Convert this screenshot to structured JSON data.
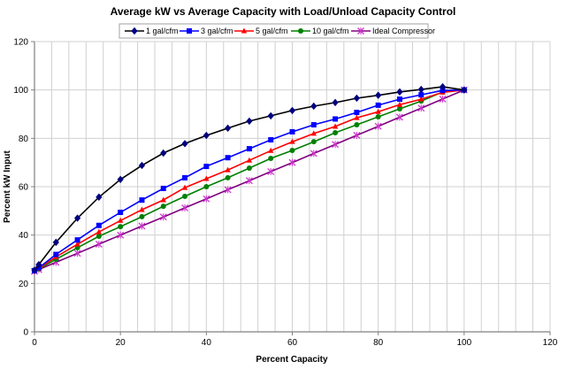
{
  "chart_data": {
    "type": "line",
    "title": "Average kW vs Average Capacity with Load/Unload Capacity Control",
    "xlabel": "Percent Capacity",
    "ylabel": "Percent kW Input",
    "xlim": [
      0,
      120
    ],
    "ylim": [
      0,
      120
    ],
    "xticks": [
      0,
      20,
      40,
      60,
      80,
      100,
      120
    ],
    "yticks": [
      0,
      20,
      40,
      60,
      80,
      100,
      120
    ],
    "x_minor_grid_step": 4,
    "grid": true,
    "legend_position": "top-center",
    "x": [
      0,
      1,
      5,
      10,
      15,
      20,
      25,
      30,
      35,
      40,
      45,
      50,
      55,
      60,
      65,
      70,
      75,
      80,
      85,
      90,
      95,
      100
    ],
    "series": [
      {
        "name": "1 gal/cfm",
        "color": "#000000",
        "marker_color": "#000080",
        "marker": "diamond",
        "values": [
          25.5,
          27.8,
          37,
          47,
          55.7,
          63,
          68.8,
          73.9,
          77.8,
          81.2,
          84.2,
          87.1,
          89.3,
          91.5,
          93.3,
          94.8,
          96.6,
          97.8,
          99.2,
          100.2,
          101.3,
          100
        ]
      },
      {
        "name": "3 gal/cfm",
        "color": "#0000FF",
        "marker_color": "#0000FF",
        "marker": "square",
        "values": [
          25.3,
          26.5,
          32,
          38,
          44,
          49.4,
          54.5,
          59.3,
          63.7,
          68.4,
          72,
          75.7,
          79.4,
          82.7,
          85.6,
          88,
          90.7,
          93.7,
          96.2,
          98,
          99.8,
          100
        ]
      },
      {
        "name": "5 gal/cfm",
        "color": "#FF0000",
        "marker_color": "#FF0000",
        "marker": "triangle",
        "values": [
          25.2,
          26.2,
          31,
          36.2,
          41.3,
          46,
          50.5,
          54.5,
          59.6,
          63.3,
          66.9,
          70.9,
          74.9,
          78.6,
          82,
          84.9,
          88.5,
          91,
          93.9,
          96.2,
          99,
          100
        ]
      },
      {
        "name": "10 gal/cfm",
        "color": "#008000",
        "marker_color": "#008000",
        "marker": "circle",
        "values": [
          25.1,
          26,
          30,
          34.8,
          39.5,
          43.5,
          47.6,
          51.9,
          56,
          60,
          63.7,
          67.7,
          71.7,
          75,
          78.6,
          82.3,
          85.6,
          88.9,
          92.2,
          95.4,
          99.2,
          100
        ]
      },
      {
        "name": "Ideal Compressor",
        "color": "#800080",
        "marker_color": "#CC33CC",
        "marker": "x",
        "values": [
          25,
          25.75,
          28.75,
          32.5,
          36.25,
          40,
          43.75,
          47.5,
          51.25,
          55,
          58.75,
          62.5,
          66.25,
          70,
          73.75,
          77.5,
          81.25,
          85,
          88.75,
          92.5,
          96.25,
          100
        ]
      }
    ]
  }
}
